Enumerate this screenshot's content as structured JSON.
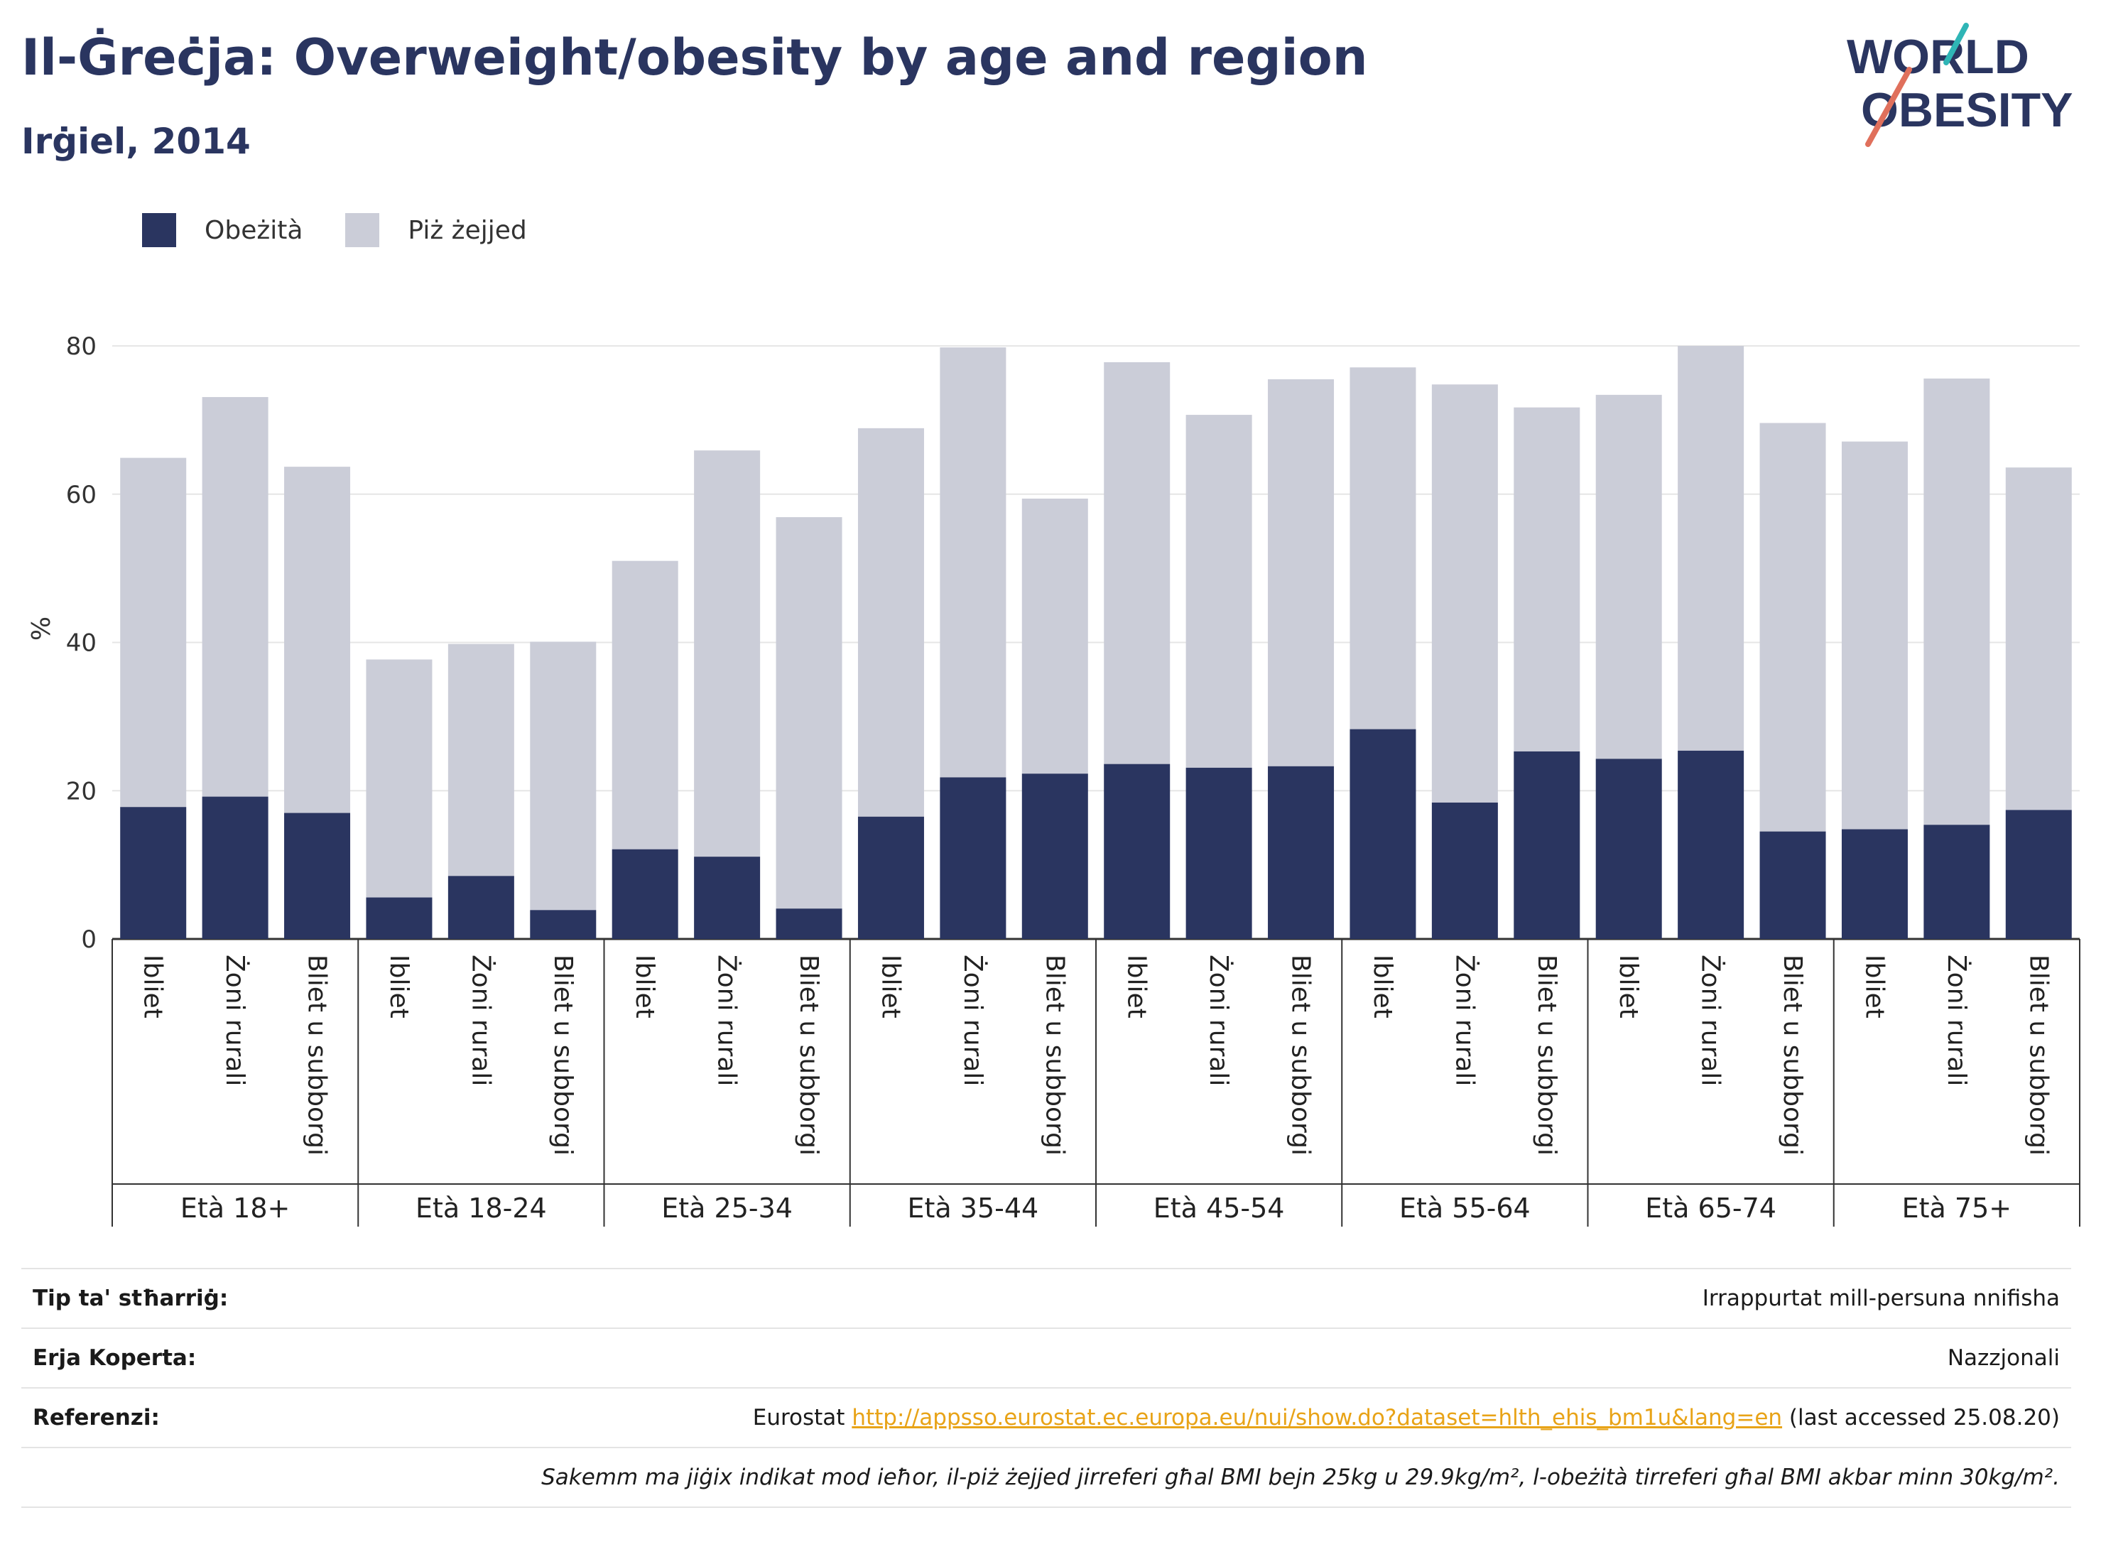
{
  "header": {
    "title": "Il-Ġreċja: Overweight/obesity by age and region",
    "subtitle": "Irġiel, 2014"
  },
  "logo": {
    "line1": "WORLD",
    "line2": "OBESITY"
  },
  "legend": {
    "obese_label": "Obeżità",
    "overweight_label": "Piż żejjed"
  },
  "colors": {
    "obese": "#2a3560",
    "overweight": "#cbcdd8",
    "logo_slash_red": "#e0705c",
    "logo_slash_teal": "#2fb5b6",
    "link": "#e8a317"
  },
  "chart_data": {
    "type": "bar",
    "stacked": true,
    "ylabel": "%",
    "ylim": [
      0,
      80
    ],
    "yticks": [
      0,
      20,
      40,
      60,
      80
    ],
    "grid": true,
    "legend_position": "top-left",
    "groups": [
      "Età 18+",
      "Età 18-24",
      "Età 25-34",
      "Età 35-44",
      "Età 45-54",
      "Età 55-64",
      "Età 65-74",
      "Età 75+"
    ],
    "subcategories": [
      "Ibliet",
      "Żoni rurali",
      "Bliet u subborgi"
    ],
    "series": [
      {
        "name": "Obeżità",
        "values": [
          17.8,
          19.2,
          17.0,
          5.6,
          8.5,
          3.9,
          12.1,
          11.1,
          4.1,
          16.5,
          21.8,
          22.3,
          23.6,
          23.1,
          23.3,
          28.3,
          18.4,
          25.3,
          24.3,
          25.4,
          14.5,
          14.8,
          15.4,
          17.4
        ]
      },
      {
        "name": "Piż żejjed",
        "values": [
          47.1,
          53.9,
          46.7,
          32.1,
          31.3,
          36.2,
          38.9,
          54.8,
          52.8,
          52.4,
          58.0,
          37.1,
          54.2,
          47.6,
          52.2,
          48.8,
          56.4,
          46.4,
          49.1,
          54.6,
          55.1,
          52.3,
          60.2,
          46.2
        ]
      }
    ]
  },
  "info": {
    "rows": [
      {
        "label": "Tip ta' stħarriġ:",
        "value": "Irrappurtat mill-persuna nnifisha"
      },
      {
        "label": "Erja Koperta:",
        "value": "Nazzjonali"
      }
    ],
    "references_label": "Referenzi:",
    "references_prefix": "Eurostat",
    "references_link": "http://appsso.eurostat.ec.europa.eu/nui/show.do?dataset=hlth_ehis_bm1u&lang=en",
    "references_suffix": "(last accessed 25.08.20)",
    "note": "Sakemm ma jiġix indikat mod ieħor, il-piż żejjed jirreferi għal BMI bejn 25kg u 29.9kg/m², l-obeżità tirreferi għal BMI akbar minn 30kg/m²."
  }
}
